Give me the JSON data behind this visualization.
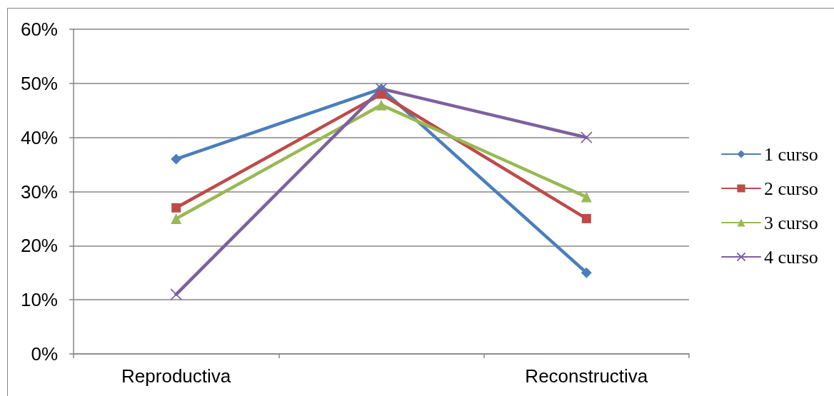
{
  "chart_data": {
    "type": "line",
    "categories": [
      "Reproductiva",
      null,
      "Reconstructiva"
    ],
    "series": [
      {
        "name": "1 curso",
        "color": "#4a7ebb",
        "marker": "diamond",
        "values": [
          36,
          49,
          15
        ]
      },
      {
        "name": "2 curso",
        "color": "#be4b48",
        "marker": "square",
        "values": [
          27,
          48,
          25
        ]
      },
      {
        "name": "3 curso",
        "color": "#98b954",
        "marker": "triangle",
        "values": [
          25,
          46,
          29
        ]
      },
      {
        "name": "4 curso",
        "color": "#7d60a0",
        "marker": "cross",
        "values": [
          11,
          49,
          40
        ]
      }
    ],
    "ylim": [
      0,
      60
    ],
    "yticks": [
      {
        "value": 0,
        "label": "0%"
      },
      {
        "value": 10,
        "label": "10%"
      },
      {
        "value": 20,
        "label": "20%"
      },
      {
        "value": 30,
        "label": "30%"
      },
      {
        "value": 40,
        "label": "40%"
      },
      {
        "value": 50,
        "label": "50%"
      },
      {
        "value": 60,
        "label": "60%"
      }
    ],
    "grid": "y",
    "legend": "right"
  }
}
